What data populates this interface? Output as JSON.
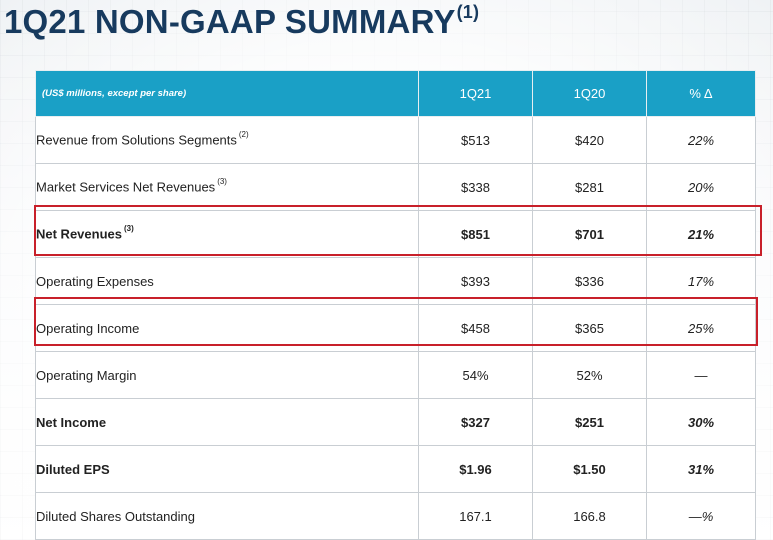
{
  "title": {
    "text": "1Q21 NON-GAAP SUMMARY",
    "footnote": "(1)"
  },
  "table": {
    "header": {
      "label": "(US$ millions, except per share)",
      "col1": "1Q21",
      "col2": "1Q20",
      "col3": "% Δ"
    },
    "rows": [
      {
        "label": "Revenue from Solutions Segments",
        "note": "(2)",
        "q121": "$513",
        "q120": "$420",
        "pct": "22%"
      },
      {
        "label": "Market Services Net Revenues",
        "note": "(3)",
        "q121": "$338",
        "q120": "$281",
        "pct": "20%"
      },
      {
        "label": "Net Revenues",
        "note": "(3)",
        "q121": "$851",
        "q120": "$701",
        "pct": "21%"
      },
      {
        "label": "Operating Expenses",
        "note": "",
        "q121": "$393",
        "q120": "$336",
        "pct": "17%"
      },
      {
        "label": "Operating Income",
        "note": "",
        "q121": "$458",
        "q120": "$365",
        "pct": "25%"
      },
      {
        "label": "Operating Margin",
        "note": "",
        "q121": "54%",
        "q120": "52%",
        "pct": "—"
      },
      {
        "label": "Net Income",
        "note": "",
        "q121": "$327",
        "q120": "$251",
        "pct": "30%"
      },
      {
        "label": "Diluted EPS",
        "note": "",
        "q121": "$1.96",
        "q120": "$1.50",
        "pct": "31%"
      },
      {
        "label": "Diluted Shares Outstanding",
        "note": "",
        "q121": "167.1",
        "q120": "166.8",
        "pct": "—%"
      }
    ]
  },
  "colors": {
    "title": "#173a5e",
    "header_bg": "#1aa0c6",
    "highlight": "#c8202a"
  }
}
